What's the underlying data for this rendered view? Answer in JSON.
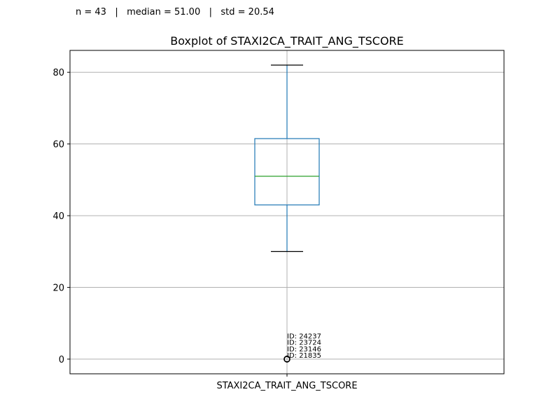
{
  "stats_text": "n = 43   |   median = 51.00   |   std = 20.54",
  "chart_data": {
    "type": "box",
    "title": "Boxplot of STAXI2CA_TRAIT_ANG_TSCORE",
    "categories": [
      "STAXI2CA_TRAIT_ANG_TSCORE"
    ],
    "xlabel": "",
    "ylabel": "",
    "ylim": [
      -4.1,
      86.1
    ],
    "yticks": [
      0,
      20,
      40,
      60,
      80
    ],
    "grid": true,
    "box": {
      "whisker_low": 30,
      "q1": 43,
      "median": 51,
      "q3": 61.5,
      "whisker_high": 82
    },
    "outliers": [
      {
        "value": 0,
        "label": "ID: 21835"
      },
      {
        "value": 0,
        "label": "ID: 23146"
      },
      {
        "value": 0,
        "label": "ID: 23724"
      },
      {
        "value": 0,
        "label": "ID: 24237"
      }
    ],
    "colors": {
      "box": "#1f77b4",
      "median": "#2ca02c",
      "caps": "#000000",
      "grid": "#b0b0b0"
    }
  }
}
